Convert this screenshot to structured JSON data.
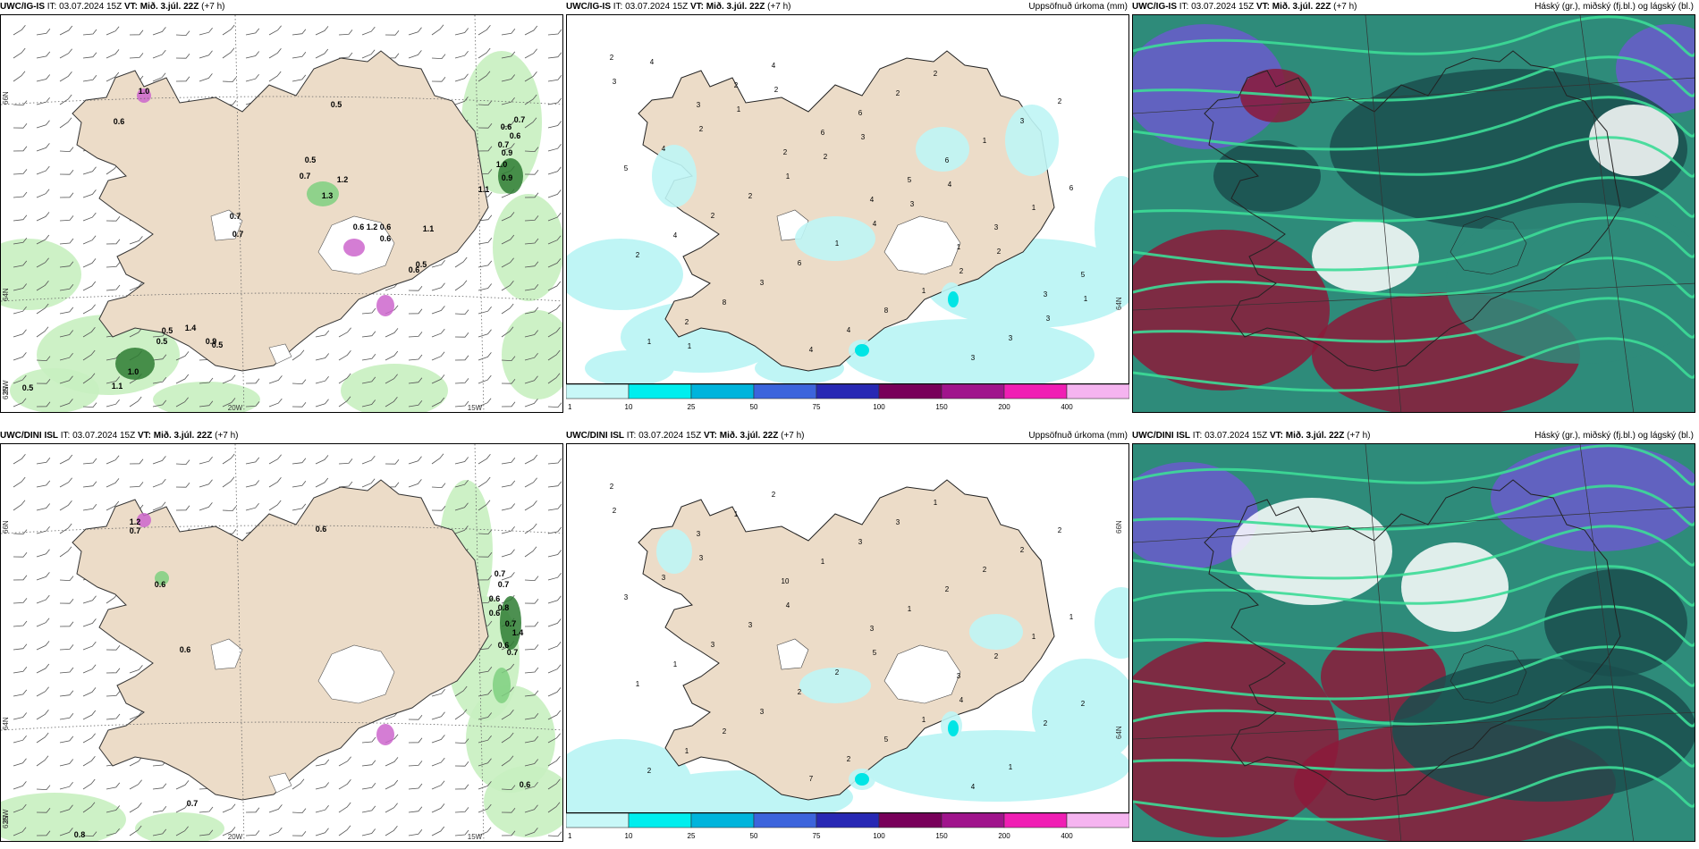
{
  "colors": {
    "land": "#ecdcc8",
    "precip_light": "#c8f0c0",
    "precip_mid": "#7fd080",
    "precip_dark": "#2e7d32",
    "snow": "#cc66cc",
    "cyan_light": "#bff5f5",
    "cyan": "#00e5e5",
    "cloud_high": "#6a5acd",
    "cloud_mid": "#2e8b7a",
    "cloud_low": "#1a4d4d",
    "cloud_green": "#3ddc97",
    "cloud_red": "#8b1a3a"
  },
  "panels": [
    {
      "id": "p1",
      "model": "UWC/IG-IS",
      "it_label": "IT:",
      "it_value": "03.07.2024 15Z",
      "vt_label": "VT:",
      "vt_value": "Mið. 3.júl. 22Z",
      "lead": "(+7 h)",
      "right_title": "",
      "lat_labels": [
        "66N",
        "64N",
        "63N"
      ],
      "lon_labels": [
        "25W",
        "20W",
        "15W"
      ],
      "labels": [
        "1.0",
        "0.6",
        "0.5",
        "0.5",
        "0.7",
        "1.2",
        "1.3",
        "0.7",
        "0.6",
        "1.2",
        "0.6",
        "1.1",
        "0.9",
        "0.6",
        "0.6",
        "0.7",
        "1.0",
        "0.9",
        "1.1",
        "0.5",
        "0.5",
        "0.5",
        "1.4",
        "0.9",
        "1.0",
        "1.1",
        "0.5",
        "0.6",
        "0.5",
        "0.7",
        "0.6",
        "0.7"
      ]
    },
    {
      "id": "p2",
      "model": "UWC/IG-IS",
      "it_label": "IT:",
      "it_value": "03.07.2024 15Z",
      "vt_label": "VT:",
      "vt_value": "Mið. 3.júl. 22Z",
      "lead": "(+7 h)",
      "right_title": "Uppsöfnuð úrkoma (mm)",
      "lat_labels": [
        "64N"
      ],
      "lon_labels": [],
      "labels": [
        "2",
        "3",
        "2",
        "4",
        "1",
        "3",
        "1",
        "2",
        "6",
        "5",
        "3",
        "5",
        "2",
        "4",
        "6",
        "6",
        "1",
        "2",
        "8",
        "4",
        "2",
        "1",
        "6",
        "4",
        "3",
        "4",
        "2",
        "3",
        "5",
        "2",
        "6",
        "8",
        "3",
        "2",
        "4",
        "2",
        "1",
        "1",
        "3",
        "3",
        "2",
        "1",
        "4",
        "2",
        "3",
        "4",
        "1",
        "2",
        "3",
        "2",
        "1",
        "1",
        "2",
        "3",
        "4"
      ]
    },
    {
      "id": "p3",
      "model": "UWC/IG-IS",
      "it_label": "IT:",
      "it_value": "03.07.2024 15Z",
      "vt_label": "VT:",
      "vt_value": "Mið. 3.júl. 22Z",
      "lead": "(+7 h)",
      "right_title": "Háský (gr.), miðský (fj.bl.) og lágský (bl.)",
      "lat_labels": [],
      "lon_labels": [],
      "labels": []
    },
    {
      "id": "p4",
      "model": "UWC/DINI ISL",
      "it_label": "IT:",
      "it_value": "03.07.2024 15Z",
      "vt_label": "VT:",
      "vt_value": "Mið. 3.júl. 22Z",
      "lead": "(+7 h)",
      "right_title": "",
      "lat_labels": [
        "66N",
        "64N",
        "63N"
      ],
      "lon_labels": [
        "25W",
        "20W",
        "15W"
      ],
      "labels": [
        "1.2",
        "0.7",
        "0.6",
        "0.6",
        "0.6",
        "0.7",
        "0.7",
        "0.6",
        "0.8",
        "0.6",
        "0.7",
        "1.4",
        "0.6",
        "0.7",
        "0.7",
        "0.6",
        "0.8"
      ]
    },
    {
      "id": "p5",
      "model": "UWC/DINI ISL",
      "it_label": "IT:",
      "it_value": "03.07.2024 15Z",
      "vt_label": "VT:",
      "vt_value": "Mið. 3.júl. 22Z",
      "lead": "(+7 h)",
      "right_title": "Uppsöfnuð úrkoma (mm)",
      "lat_labels": [
        "66N",
        "64N"
      ],
      "lon_labels": [],
      "labels": [
        "2",
        "3",
        "10",
        "3",
        "3",
        "2",
        "2",
        "1",
        "1",
        "1",
        "2",
        "2",
        "1",
        "2",
        "3",
        "2",
        "1",
        "1",
        "2",
        "7",
        "3",
        "2",
        "1",
        "1",
        "3",
        "2",
        "1",
        "2",
        "3",
        "3",
        "2",
        "5",
        "4",
        "2",
        "3",
        "3",
        "2",
        "1",
        "1",
        "2",
        "3",
        "4",
        "5",
        "4"
      ]
    },
    {
      "id": "p6",
      "model": "UWC/DINI ISL",
      "it_label": "IT:",
      "it_value": "03.07.2024 15Z",
      "vt_label": "VT:",
      "vt_value": "Mið. 3.júl. 22Z",
      "lead": "(+7 h)",
      "right_title": "Háský (gr.), miðský (fj.bl.) og lágský (bl.)",
      "lat_labels": [],
      "lon_labels": [],
      "labels": []
    }
  ],
  "colorbar": {
    "ticks": [
      "1",
      "10",
      "25",
      "50",
      "75",
      "100",
      "150",
      "200",
      "400"
    ],
    "colors": [
      "#c8f8f8",
      "#00eeee",
      "#00b4dc",
      "#3c64dc",
      "#2828b4",
      "#78005a",
      "#a0148c",
      "#f01eb4",
      "#f5b4f0"
    ]
  }
}
